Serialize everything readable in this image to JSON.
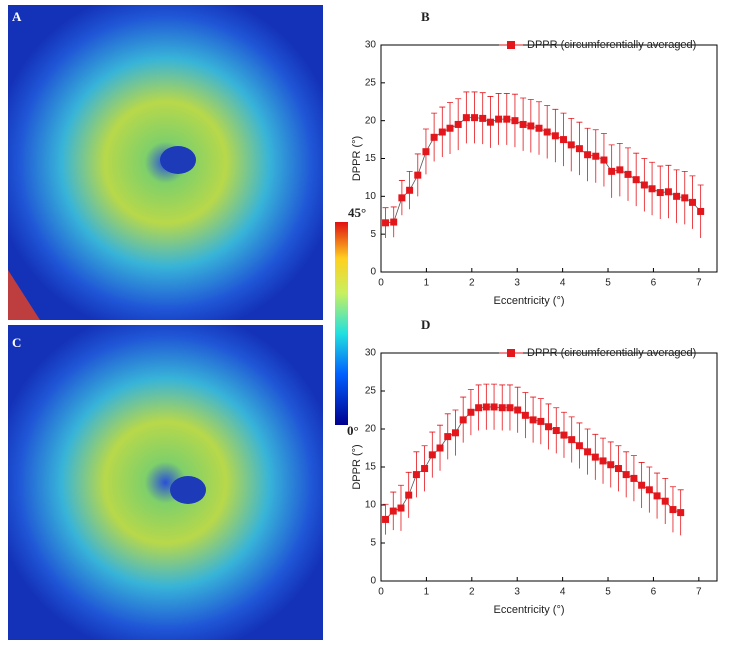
{
  "images": [
    {
      "label": "A"
    },
    {
      "label": "C"
    }
  ],
  "colorbar": {
    "max_label": "45°",
    "min_label": "0°"
  },
  "chart_data": [
    {
      "type": "line",
      "panel": "B",
      "x_label": "Eccentricity (°)",
      "y_label": "DPPR (°)",
      "xlim": [
        0,
        7.4
      ],
      "ylim": [
        0,
        30
      ],
      "xticks": [
        0,
        1,
        2,
        3,
        4,
        5,
        6,
        7
      ],
      "yticks": [
        0,
        5,
        10,
        15,
        20,
        25,
        30
      ],
      "x": [
        0.1,
        0.28,
        0.46,
        0.63,
        0.81,
        0.99,
        1.17,
        1.35,
        1.52,
        1.7,
        1.88,
        2.06,
        2.24,
        2.41,
        2.59,
        2.77,
        2.95,
        3.13,
        3.3,
        3.48,
        3.66,
        3.84,
        4.02,
        4.19,
        4.37,
        4.55,
        4.73,
        4.91,
        5.08,
        5.26,
        5.44,
        5.62,
        5.8,
        5.97,
        6.15,
        6.33,
        6.51,
        6.69,
        6.86,
        7.04
      ],
      "series": [
        {
          "name": "DPPR (circumferentially averaged)",
          "color": "#e3161c",
          "values": [
            6.5,
            6.6,
            9.8,
            10.8,
            12.8,
            15.9,
            17.8,
            18.5,
            19.0,
            19.5,
            20.4,
            20.4,
            20.3,
            19.8,
            20.2,
            20.2,
            20.0,
            19.5,
            19.3,
            19.0,
            18.5,
            18.0,
            17.5,
            16.8,
            16.3,
            15.5,
            15.3,
            14.8,
            13.3,
            13.5,
            12.9,
            12.2,
            11.5,
            11.0,
            10.5,
            10.6,
            10.0,
            9.8,
            9.2,
            8.0
          ],
          "errors": [
            2,
            2,
            2.3,
            2.5,
            2.8,
            3,
            3.2,
            3.3,
            3.4,
            3.4,
            3.4,
            3.4,
            3.4,
            3.4,
            3.4,
            3.4,
            3.5,
            3.5,
            3.5,
            3.5,
            3.5,
            3.5,
            3.5,
            3.5,
            3.5,
            3.5,
            3.5,
            3.5,
            3.5,
            3.5,
            3.5,
            3.5,
            3.5,
            3.5,
            3.5,
            3.5,
            3.5,
            3.5,
            3.5,
            3.5
          ]
        }
      ]
    },
    {
      "type": "line",
      "panel": "D",
      "x_label": "Eccentricity (°)",
      "y_label": "DPPR (°)",
      "xlim": [
        0,
        7.4
      ],
      "ylim": [
        0,
        30
      ],
      "xticks": [
        0,
        1,
        2,
        3,
        4,
        5,
        6,
        7
      ],
      "yticks": [
        0,
        5,
        10,
        15,
        20,
        25,
        30
      ],
      "x": [
        0.1,
        0.27,
        0.44,
        0.61,
        0.78,
        0.96,
        1.13,
        1.3,
        1.47,
        1.64,
        1.81,
        1.98,
        2.15,
        2.32,
        2.49,
        2.67,
        2.84,
        3.01,
        3.18,
        3.35,
        3.52,
        3.69,
        3.86,
        4.03,
        4.2,
        4.37,
        4.55,
        4.72,
        4.89,
        5.06,
        5.23,
        5.4,
        5.57,
        5.74,
        5.91,
        6.08,
        6.26,
        6.43,
        6.6
      ],
      "series": [
        {
          "name": "DPPR (circumferentially averaged)",
          "color": "#e3161c",
          "values": [
            8.1,
            9.2,
            9.6,
            11.3,
            14.0,
            14.8,
            16.6,
            17.5,
            19.0,
            19.5,
            21.2,
            22.2,
            22.8,
            22.9,
            22.9,
            22.8,
            22.8,
            22.5,
            21.8,
            21.2,
            21.0,
            20.3,
            19.8,
            19.2,
            18.6,
            17.8,
            17.0,
            16.3,
            15.8,
            15.3,
            14.8,
            14.0,
            13.5,
            12.6,
            12.0,
            11.2,
            10.5,
            9.4,
            9.0
          ],
          "errors": [
            2,
            2.5,
            3,
            3,
            3,
            3,
            3,
            3,
            3,
            3,
            3,
            3,
            3,
            3,
            3,
            3,
            3,
            3,
            3,
            3,
            3,
            3,
            3,
            3,
            3,
            3,
            3,
            3,
            3,
            3,
            3,
            3,
            3,
            3,
            3,
            3,
            3,
            3,
            3
          ]
        }
      ]
    }
  ]
}
